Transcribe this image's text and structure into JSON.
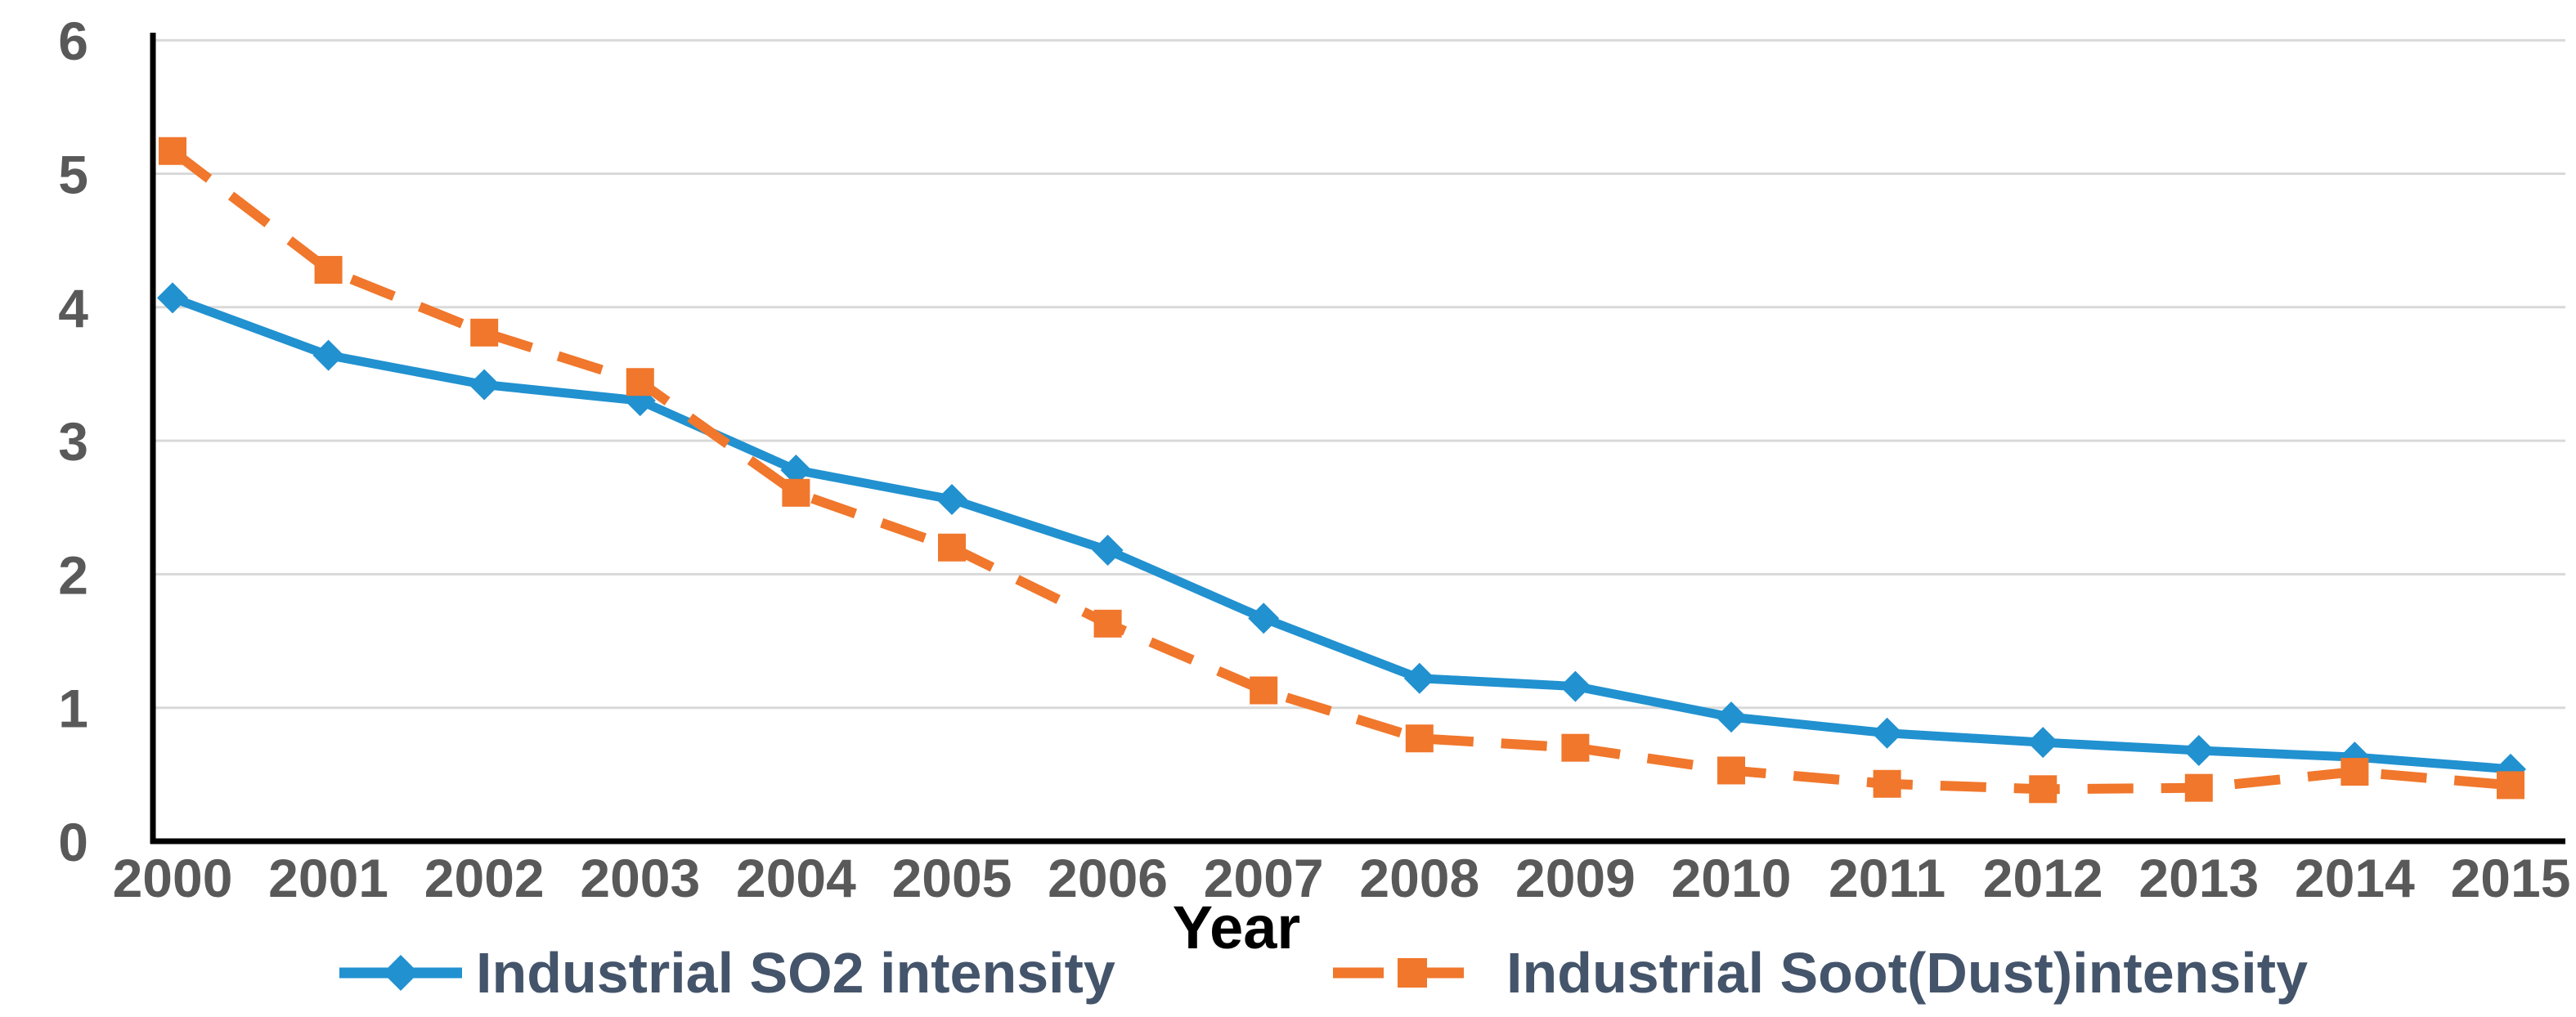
{
  "chart_data": {
    "type": "line",
    "title": "",
    "xlabel": "Year",
    "ylabel": "",
    "categories": [
      "2000",
      "2001",
      "2002",
      "2003",
      "2004",
      "2005",
      "2006",
      "2007",
      "2008",
      "2009",
      "2010",
      "2011",
      "2012",
      "2013",
      "2014",
      "2015"
    ],
    "yticks": [
      "0",
      "1",
      "2",
      "3",
      "4",
      "5",
      "6"
    ],
    "ylim": [
      0,
      6
    ],
    "grid": true,
    "legend_position": "bottom",
    "series": [
      {
        "name": "Industrial SO2 intensity",
        "marker": "diamond",
        "line_style": "solid",
        "color": "#2191D0",
        "values": [
          4.07,
          3.64,
          3.42,
          3.3,
          2.78,
          2.56,
          2.18,
          1.67,
          1.22,
          1.16,
          0.93,
          0.81,
          0.74,
          0.68,
          0.63,
          0.54
        ]
      },
      {
        "name": "Industrial Soot(Dust)intensity",
        "marker": "square",
        "line_style": "dashed",
        "color": "#F0772C",
        "values": [
          5.17,
          4.28,
          3.81,
          3.44,
          2.61,
          2.2,
          1.63,
          1.13,
          0.77,
          0.7,
          0.53,
          0.43,
          0.39,
          0.4,
          0.52,
          0.42
        ]
      }
    ]
  },
  "colors": {
    "series_blue": "#2191D0",
    "series_orange": "#F0772C",
    "tick_text": "#595959",
    "legend_text": "#44546A",
    "xlabel_text": "#000000",
    "gridline": "#D9D9D9",
    "axis_line": "#000000",
    "background": "#FFFFFF"
  }
}
